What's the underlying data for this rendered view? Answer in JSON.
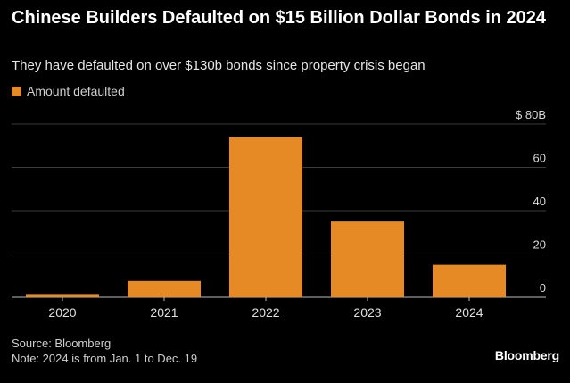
{
  "chart_data": {
    "type": "bar",
    "title": "Chinese Builders Defaulted on $15 Billion Dollar Bonds in 2024",
    "subtitle": "They have defaulted on over $130b bonds since property crisis began",
    "legend": [
      {
        "name": "Amount defaulted",
        "color": "#e58a24"
      }
    ],
    "categories": [
      "2020",
      "2021",
      "2022",
      "2023",
      "2024"
    ],
    "series": [
      {
        "name": "Amount defaulted",
        "values": [
          1.5,
          7.5,
          74,
          35,
          15
        ]
      }
    ],
    "ylim": [
      0,
      80
    ],
    "yticks": [
      0,
      20,
      40,
      60,
      80
    ],
    "ytick_labels": [
      "0",
      "20",
      "40",
      "60",
      "$ 80B"
    ],
    "grid": true,
    "xlabel": "",
    "ylabel": ""
  },
  "footer": {
    "source": "Source: Bloomberg",
    "note": "Note: 2024 is from Jan. 1 to Dec. 19"
  },
  "brand": "Bloomberg",
  "colors": {
    "bar": "#e58a24",
    "grid": "#3a3a3a",
    "axis": "#bdbdbd"
  }
}
